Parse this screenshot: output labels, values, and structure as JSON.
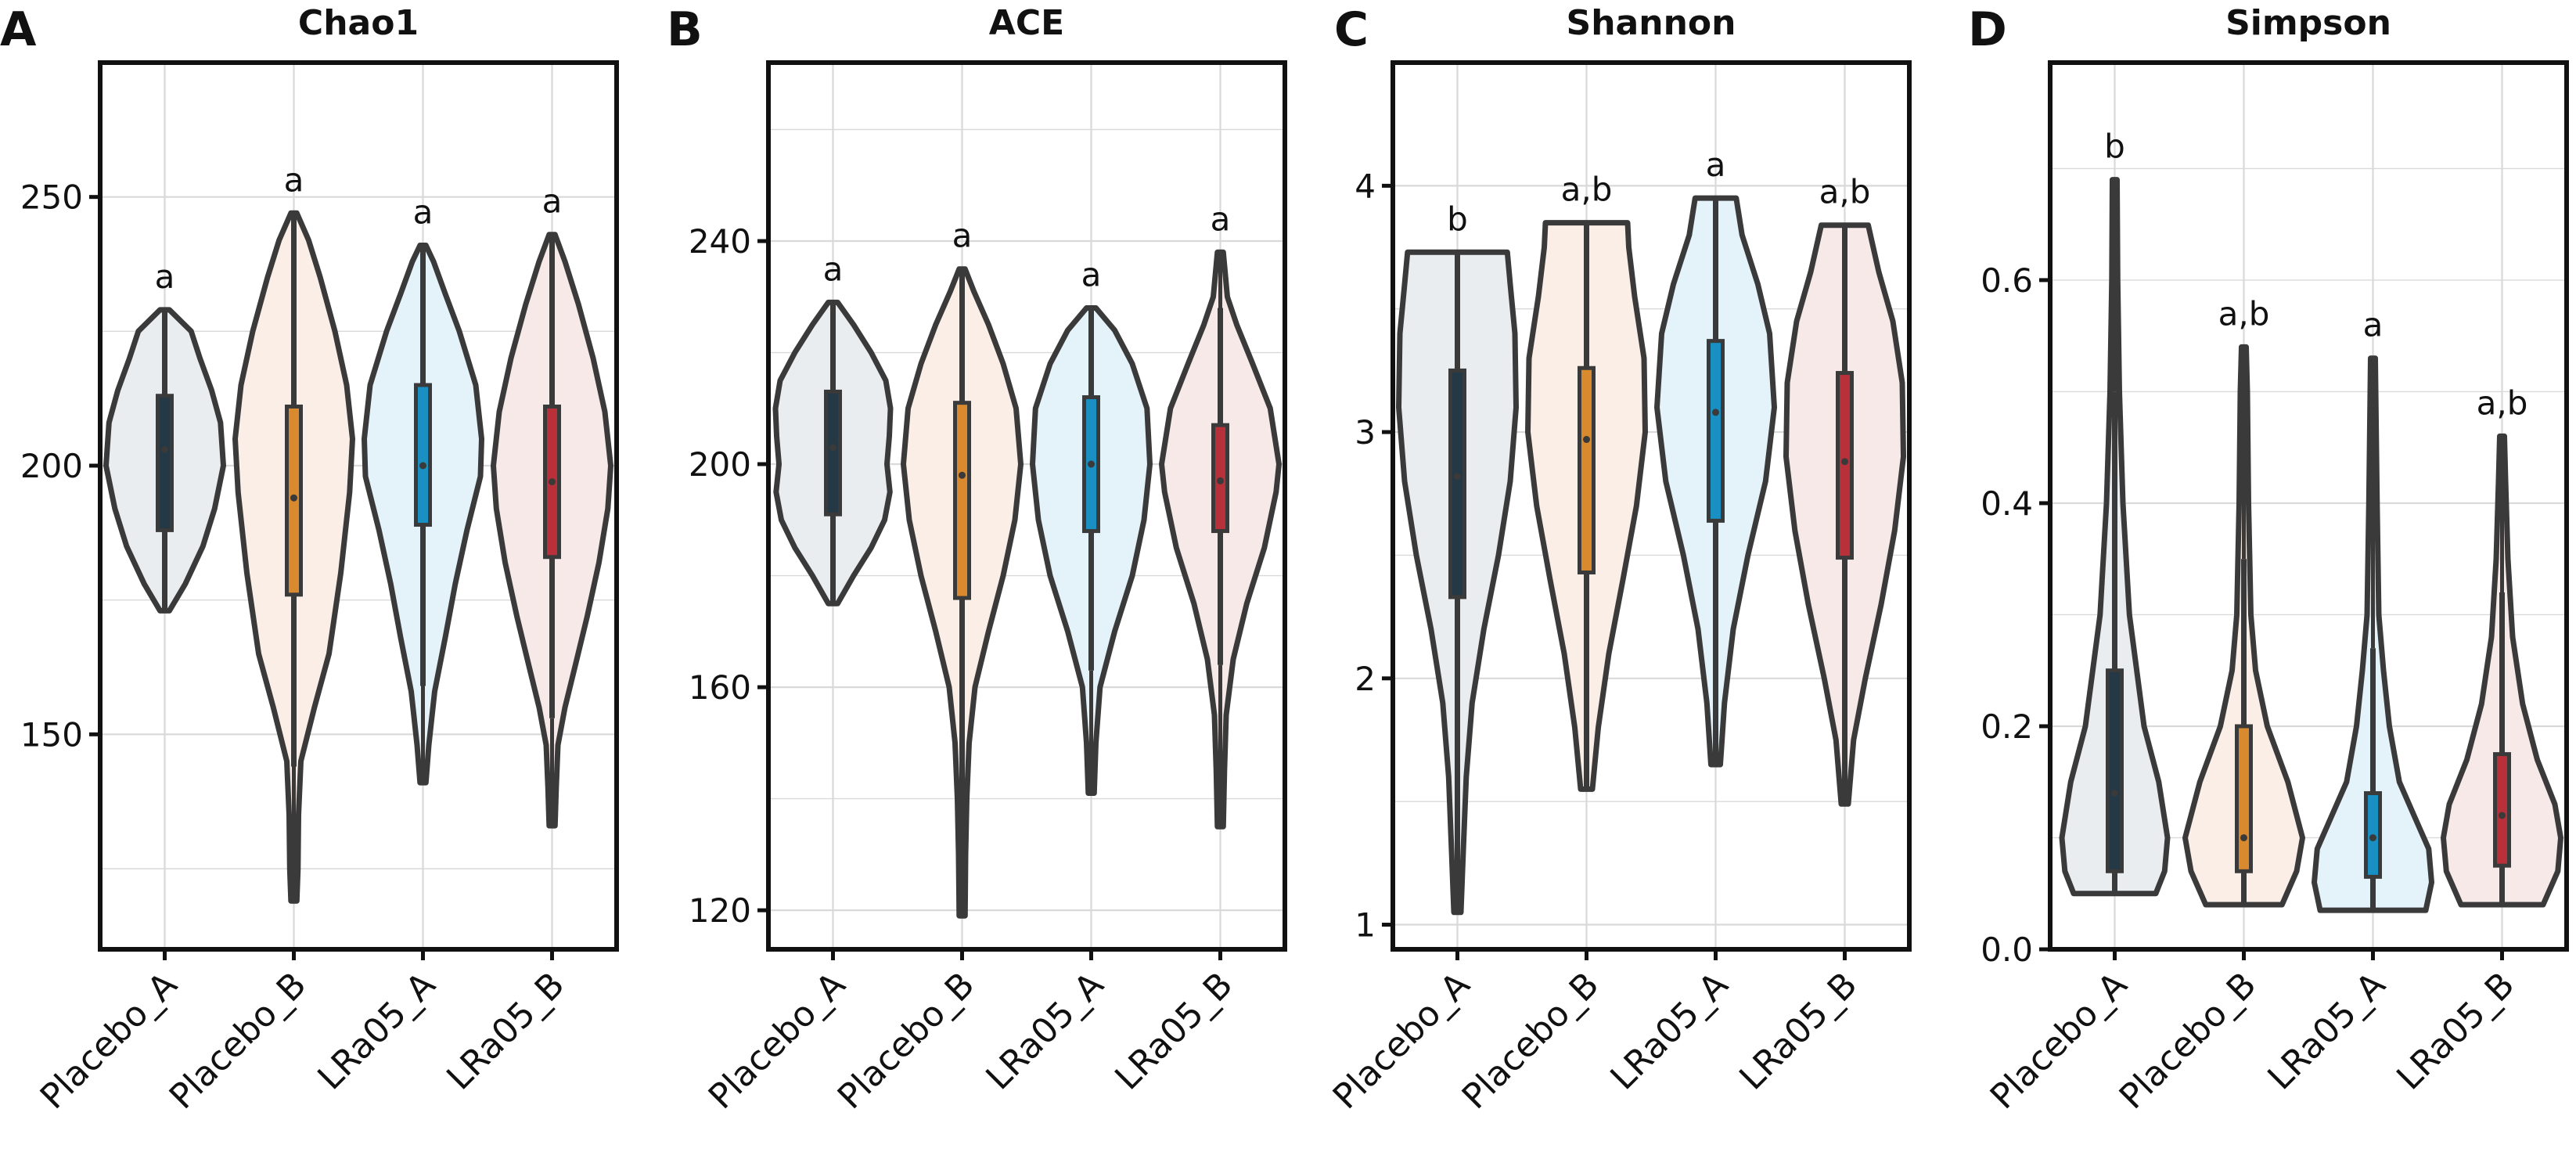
{
  "figure": {
    "categories": [
      "Placebo_A",
      "Placebo_B",
      "LRa05_A",
      "LRa05_B"
    ],
    "colors": {
      "fills": [
        "#eaedf0",
        "#fbeee6",
        "#e4f2fa",
        "#f6e9e8"
      ],
      "boxes": [
        "#243845",
        "#d98a2e",
        "#1a8fc2",
        "#b8313a"
      ],
      "outline": "#3a3a3a",
      "grid": "#d9d9d9",
      "axis": "#111111"
    }
  },
  "chart_data": [
    {
      "type": "violin",
      "panel_label": "A",
      "title": "Chao1",
      "ylim": [
        110,
        275
      ],
      "yticks": [
        150,
        200,
        250
      ],
      "categories": [
        "Placebo_A",
        "Placebo_B",
        "LRa05_A",
        "LRa05_B"
      ],
      "significance_labels": [
        "a",
        "a",
        "a",
        "a"
      ],
      "groups": [
        {
          "name": "Placebo_A",
          "min": 173,
          "q1": 188,
          "median": 203,
          "q3": 213,
          "max": 229,
          "whisker_low": 173,
          "whisker_high": 229,
          "profile": [
            [
              173,
              0.08
            ],
            [
              178,
              0.35
            ],
            [
              185,
              0.65
            ],
            [
              192,
              0.85
            ],
            [
              200,
              1.0
            ],
            [
              208,
              0.95
            ],
            [
              214,
              0.8
            ],
            [
              220,
              0.6
            ],
            [
              225,
              0.45
            ],
            [
              229,
              0.08
            ]
          ]
        },
        {
          "name": "Placebo_B",
          "min": 119,
          "q1": 176,
          "median": 194,
          "q3": 211,
          "max": 247,
          "whisker_low": 144,
          "whisker_high": 247,
          "profile": [
            [
              119,
              0.05
            ],
            [
              125,
              0.07
            ],
            [
              135,
              0.08
            ],
            [
              145,
              0.12
            ],
            [
              155,
              0.35
            ],
            [
              165,
              0.6
            ],
            [
              180,
              0.8
            ],
            [
              195,
              0.95
            ],
            [
              205,
              1.0
            ],
            [
              215,
              0.9
            ],
            [
              225,
              0.7
            ],
            [
              235,
              0.45
            ],
            [
              242,
              0.25
            ],
            [
              247,
              0.05
            ]
          ]
        },
        {
          "name": "LRa05_A",
          "min": 141,
          "q1": 189,
          "median": 200,
          "q3": 215,
          "max": 241,
          "whisker_low": 159,
          "whisker_high": 241,
          "profile": [
            [
              141,
              0.05
            ],
            [
              148,
              0.1
            ],
            [
              158,
              0.2
            ],
            [
              168,
              0.38
            ],
            [
              178,
              0.55
            ],
            [
              188,
              0.75
            ],
            [
              198,
              0.98
            ],
            [
              205,
              1.0
            ],
            [
              215,
              0.9
            ],
            [
              225,
              0.62
            ],
            [
              232,
              0.38
            ],
            [
              238,
              0.18
            ],
            [
              241,
              0.05
            ]
          ]
        },
        {
          "name": "LRa05_B",
          "min": 133,
          "q1": 183,
          "median": 197,
          "q3": 211,
          "max": 243,
          "whisker_low": 153,
          "whisker_high": 243,
          "profile": [
            [
              133,
              0.05
            ],
            [
              140,
              0.07
            ],
            [
              148,
              0.1
            ],
            [
              155,
              0.22
            ],
            [
              163,
              0.4
            ],
            [
              172,
              0.6
            ],
            [
              182,
              0.8
            ],
            [
              192,
              0.95
            ],
            [
              200,
              1.0
            ],
            [
              210,
              0.9
            ],
            [
              220,
              0.7
            ],
            [
              230,
              0.45
            ],
            [
              238,
              0.22
            ],
            [
              243,
              0.05
            ]
          ]
        }
      ]
    },
    {
      "type": "violin",
      "panel_label": "B",
      "title": "ACE",
      "ylim": [
        113,
        272
      ],
      "yticks": [
        120,
        160,
        200,
        240
      ],
      "categories": [
        "Placebo_A",
        "Placebo_B",
        "LRa05_A",
        "LRa05_B"
      ],
      "significance_labels": [
        "a",
        "a",
        "a",
        "a"
      ],
      "groups": [
        {
          "name": "Placebo_A",
          "min": 175,
          "q1": 191,
          "median": 203,
          "q3": 213,
          "max": 229,
          "whisker_low": 175,
          "whisker_high": 229,
          "profile": [
            [
              175,
              0.08
            ],
            [
              180,
              0.35
            ],
            [
              185,
              0.65
            ],
            [
              190,
              0.88
            ],
            [
              195,
              0.97
            ],
            [
              200,
              0.92
            ],
            [
              205,
              0.96
            ],
            [
              210,
              0.98
            ],
            [
              215,
              0.9
            ],
            [
              220,
              0.65
            ],
            [
              225,
              0.35
            ],
            [
              229,
              0.08
            ]
          ]
        },
        {
          "name": "Placebo_B",
          "min": 119,
          "q1": 176,
          "median": 198,
          "q3": 211,
          "max": 235,
          "whisker_low": 119,
          "whisker_high": 235,
          "profile": [
            [
              119,
              0.05
            ],
            [
              130,
              0.06
            ],
            [
              140,
              0.08
            ],
            [
              150,
              0.12
            ],
            [
              160,
              0.22
            ],
            [
              170,
              0.45
            ],
            [
              180,
              0.7
            ],
            [
              190,
              0.9
            ],
            [
              200,
              1.0
            ],
            [
              210,
              0.92
            ],
            [
              218,
              0.7
            ],
            [
              225,
              0.45
            ],
            [
              231,
              0.2
            ],
            [
              235,
              0.05
            ]
          ]
        },
        {
          "name": "LRa05_A",
          "min": 141,
          "q1": 188,
          "median": 200,
          "q3": 212,
          "max": 228,
          "whisker_low": 163,
          "whisker_high": 228,
          "profile": [
            [
              141,
              0.05
            ],
            [
              150,
              0.08
            ],
            [
              160,
              0.15
            ],
            [
              170,
              0.4
            ],
            [
              180,
              0.7
            ],
            [
              190,
              0.9
            ],
            [
              200,
              1.0
            ],
            [
              210,
              0.95
            ],
            [
              218,
              0.7
            ],
            [
              224,
              0.4
            ],
            [
              228,
              0.08
            ]
          ]
        },
        {
          "name": "LRa05_B",
          "min": 135,
          "q1": 188,
          "median": 197,
          "q3": 207,
          "max": 238,
          "whisker_low": 164,
          "whisker_high": 228,
          "profile": [
            [
              135,
              0.05
            ],
            [
              145,
              0.07
            ],
            [
              155,
              0.1
            ],
            [
              165,
              0.22
            ],
            [
              175,
              0.45
            ],
            [
              185,
              0.75
            ],
            [
              195,
              0.95
            ],
            [
              200,
              1.0
            ],
            [
              210,
              0.85
            ],
            [
              218,
              0.55
            ],
            [
              225,
              0.28
            ],
            [
              230,
              0.12
            ],
            [
              238,
              0.05
            ]
          ]
        }
      ]
    },
    {
      "type": "violin",
      "panel_label": "C",
      "title": "Shannon",
      "ylim": [
        0.9,
        4.5
      ],
      "yticks": [
        1,
        2,
        3,
        4
      ],
      "categories": [
        "Placebo_A",
        "Placebo_B",
        "LRa05_A",
        "LRa05_B"
      ],
      "significance_labels": [
        "b",
        "a,b",
        "a",
        "a,b"
      ],
      "groups": [
        {
          "name": "Placebo_A",
          "min": 1.05,
          "q1": 2.33,
          "median": 2.82,
          "q3": 3.25,
          "max": 3.73,
          "whisker_low": 1.05,
          "whisker_high": 3.73,
          "profile": [
            [
              1.05,
              0.06
            ],
            [
              1.3,
              0.1
            ],
            [
              1.6,
              0.15
            ],
            [
              1.9,
              0.25
            ],
            [
              2.2,
              0.45
            ],
            [
              2.5,
              0.7
            ],
            [
              2.8,
              0.9
            ],
            [
              3.1,
              1.0
            ],
            [
              3.4,
              0.98
            ],
            [
              3.6,
              0.9
            ],
            [
              3.73,
              0.85
            ]
          ]
        },
        {
          "name": "Placebo_B",
          "min": 1.55,
          "q1": 2.43,
          "median": 2.97,
          "q3": 3.26,
          "max": 3.85,
          "whisker_low": 1.55,
          "whisker_high": 3.85,
          "profile": [
            [
              1.55,
              0.1
            ],
            [
              1.8,
              0.2
            ],
            [
              2.1,
              0.38
            ],
            [
              2.4,
              0.62
            ],
            [
              2.7,
              0.85
            ],
            [
              3.0,
              1.0
            ],
            [
              3.3,
              0.98
            ],
            [
              3.55,
              0.82
            ],
            [
              3.75,
              0.72
            ],
            [
              3.85,
              0.7
            ]
          ]
        },
        {
          "name": "LRa05_A",
          "min": 1.65,
          "q1": 2.64,
          "median": 3.08,
          "q3": 3.37,
          "max": 3.95,
          "whisker_low": 1.65,
          "whisker_high": 3.95,
          "profile": [
            [
              1.65,
              0.08
            ],
            [
              1.9,
              0.15
            ],
            [
              2.2,
              0.3
            ],
            [
              2.5,
              0.55
            ],
            [
              2.8,
              0.85
            ],
            [
              3.1,
              1.0
            ],
            [
              3.4,
              0.92
            ],
            [
              3.6,
              0.72
            ],
            [
              3.8,
              0.45
            ],
            [
              3.95,
              0.35
            ]
          ]
        },
        {
          "name": "LRa05_B",
          "min": 1.49,
          "q1": 2.49,
          "median": 2.88,
          "q3": 3.24,
          "max": 3.84,
          "whisker_low": 1.49,
          "whisker_high": 3.84,
          "profile": [
            [
              1.49,
              0.06
            ],
            [
              1.75,
              0.15
            ],
            [
              2.0,
              0.35
            ],
            [
              2.3,
              0.62
            ],
            [
              2.6,
              0.85
            ],
            [
              2.9,
              1.0
            ],
            [
              3.2,
              0.98
            ],
            [
              3.45,
              0.82
            ],
            [
              3.65,
              0.58
            ],
            [
              3.84,
              0.4
            ]
          ]
        }
      ]
    },
    {
      "type": "violin",
      "panel_label": "D",
      "title": "Simpson",
      "ylim": [
        0,
        0.795
      ],
      "yticks": [
        0.0,
        0.2,
        0.4,
        0.6
      ],
      "categories": [
        "Placebo_A",
        "Placebo_B",
        "LRa05_A",
        "LRa05_B"
      ],
      "significance_labels": [
        "b",
        "a,b",
        "a",
        "a,b"
      ],
      "groups": [
        {
          "name": "Placebo_A",
          "min": 0.05,
          "q1": 0.07,
          "median": 0.14,
          "q3": 0.25,
          "max": 0.69,
          "whisker_low": 0.05,
          "whisker_high": 0.5,
          "profile": [
            [
              0.05,
              0.7
            ],
            [
              0.07,
              0.85
            ],
            [
              0.1,
              0.9
            ],
            [
              0.15,
              0.75
            ],
            [
              0.2,
              0.5
            ],
            [
              0.3,
              0.25
            ],
            [
              0.4,
              0.14
            ],
            [
              0.5,
              0.08
            ],
            [
              0.6,
              0.05
            ],
            [
              0.69,
              0.04
            ]
          ]
        },
        {
          "name": "Placebo_B",
          "min": 0.04,
          "q1": 0.07,
          "median": 0.1,
          "q3": 0.2,
          "max": 0.54,
          "whisker_low": 0.04,
          "whisker_high": 0.35,
          "profile": [
            [
              0.04,
              0.65
            ],
            [
              0.07,
              0.9
            ],
            [
              0.1,
              1.0
            ],
            [
              0.15,
              0.75
            ],
            [
              0.2,
              0.4
            ],
            [
              0.25,
              0.2
            ],
            [
              0.3,
              0.12
            ],
            [
              0.4,
              0.08
            ],
            [
              0.5,
              0.06
            ],
            [
              0.54,
              0.04
            ]
          ]
        },
        {
          "name": "LRa05_A",
          "min": 0.035,
          "q1": 0.065,
          "median": 0.1,
          "q3": 0.14,
          "max": 0.53,
          "whisker_low": 0.035,
          "whisker_high": 0.27,
          "profile": [
            [
              0.035,
              0.9
            ],
            [
              0.06,
              1.0
            ],
            [
              0.09,
              0.95
            ],
            [
              0.12,
              0.7
            ],
            [
              0.15,
              0.45
            ],
            [
              0.2,
              0.28
            ],
            [
              0.25,
              0.18
            ],
            [
              0.3,
              0.1
            ],
            [
              0.4,
              0.07
            ],
            [
              0.53,
              0.04
            ]
          ]
        },
        {
          "name": "LRa05_B",
          "min": 0.04,
          "q1": 0.075,
          "median": 0.12,
          "q3": 0.175,
          "max": 0.46,
          "whisker_low": 0.04,
          "whisker_high": 0.32,
          "profile": [
            [
              0.04,
              0.7
            ],
            [
              0.07,
              0.95
            ],
            [
              0.1,
              1.0
            ],
            [
              0.13,
              0.9
            ],
            [
              0.17,
              0.6
            ],
            [
              0.22,
              0.35
            ],
            [
              0.28,
              0.18
            ],
            [
              0.35,
              0.1
            ],
            [
              0.42,
              0.06
            ],
            [
              0.46,
              0.04
            ]
          ]
        }
      ]
    }
  ]
}
